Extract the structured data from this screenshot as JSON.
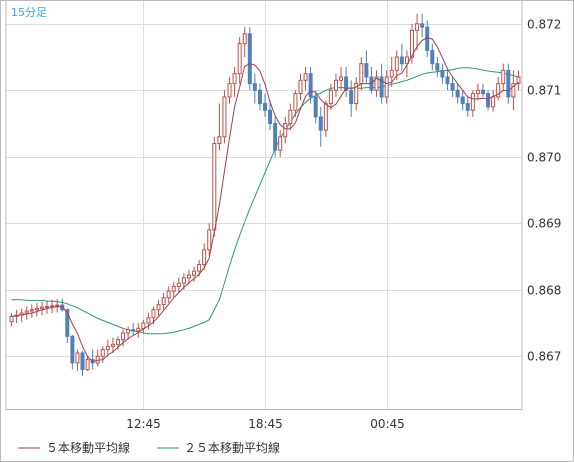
{
  "chart_data": {
    "type": "candlestick",
    "interval_label": "15分足",
    "x_tick_labels": [
      "12:45",
      "18:45",
      "00:45"
    ],
    "y_ticks": [
      0.867,
      0.868,
      0.869,
      0.87,
      0.871,
      0.872
    ],
    "y_tick_labels": [
      "0.867",
      "0.868",
      "0.869",
      "0.870",
      "0.871",
      "0.872"
    ],
    "ylim": [
      0.8662,
      0.87235
    ],
    "grid": true,
    "legend_position": "bottom",
    "colors": {
      "up": "#c0504d",
      "down": "#4f81bd",
      "ma5": "#a04050",
      "ma25": "#2e9a6a",
      "grid": "#dddddd",
      "frame": "#bbbbbb"
    },
    "series": [
      {
        "name": "５本移動平均線",
        "key": "ma5"
      },
      {
        "name": "２５本移動平均線",
        "key": "ma25"
      }
    ],
    "candles": [
      [
        0.86752,
        0.86765,
        0.86745,
        0.8676
      ],
      [
        0.8676,
        0.8677,
        0.8675,
        0.86762
      ],
      [
        0.86762,
        0.86772,
        0.86752,
        0.86765
      ],
      [
        0.86765,
        0.86775,
        0.86755,
        0.86768
      ],
      [
        0.86768,
        0.86778,
        0.86758,
        0.8677
      ],
      [
        0.8677,
        0.8678,
        0.8676,
        0.86772
      ],
      [
        0.86772,
        0.86782,
        0.86762,
        0.86774
      ],
      [
        0.86774,
        0.86784,
        0.86764,
        0.86775
      ],
      [
        0.86775,
        0.86785,
        0.86765,
        0.86776
      ],
      [
        0.86776,
        0.86786,
        0.86766,
        0.86777
      ],
      [
        0.86777,
        0.86787,
        0.86767,
        0.8677
      ],
      [
        0.8677,
        0.86772,
        0.8672,
        0.8673
      ],
      [
        0.8673,
        0.86732,
        0.8668,
        0.8669
      ],
      [
        0.8669,
        0.8671,
        0.86678,
        0.86705
      ],
      [
        0.86705,
        0.86708,
        0.8667,
        0.8668
      ],
      [
        0.8668,
        0.867,
        0.86678,
        0.86695
      ],
      [
        0.86695,
        0.8671,
        0.8668,
        0.8669
      ],
      [
        0.8669,
        0.8671,
        0.86685,
        0.867
      ],
      [
        0.867,
        0.86715,
        0.8669,
        0.8671
      ],
      [
        0.8671,
        0.86725,
        0.867,
        0.86715
      ],
      [
        0.86715,
        0.86728,
        0.86705,
        0.86718
      ],
      [
        0.86718,
        0.8673,
        0.8671,
        0.86725
      ],
      [
        0.86725,
        0.8674,
        0.86715,
        0.86735
      ],
      [
        0.86735,
        0.86745,
        0.86725,
        0.8674
      ],
      [
        0.8674,
        0.8675,
        0.8673,
        0.86738
      ],
      [
        0.86738,
        0.8675,
        0.86728,
        0.86742
      ],
      [
        0.86742,
        0.86755,
        0.86735,
        0.8675
      ],
      [
        0.8675,
        0.86765,
        0.8674,
        0.86758
      ],
      [
        0.86758,
        0.86775,
        0.86748,
        0.8677
      ],
      [
        0.8677,
        0.86785,
        0.8676,
        0.86778
      ],
      [
        0.86778,
        0.86795,
        0.8677,
        0.86788
      ],
      [
        0.86788,
        0.86805,
        0.8678,
        0.86798
      ],
      [
        0.86798,
        0.86812,
        0.86788,
        0.86805
      ],
      [
        0.86805,
        0.86818,
        0.86795,
        0.8681
      ],
      [
        0.8681,
        0.86825,
        0.868,
        0.86818
      ],
      [
        0.86818,
        0.8683,
        0.86808,
        0.86822
      ],
      [
        0.86822,
        0.86835,
        0.86812,
        0.86828
      ],
      [
        0.86828,
        0.86845,
        0.8682,
        0.86838
      ],
      [
        0.86838,
        0.8687,
        0.8683,
        0.8686
      ],
      [
        0.8686,
        0.869,
        0.8685,
        0.8689
      ],
      [
        0.8689,
        0.8703,
        0.8688,
        0.8702
      ],
      [
        0.8702,
        0.8708,
        0.8701,
        0.8703
      ],
      [
        0.8703,
        0.871,
        0.8702,
        0.8709
      ],
      [
        0.8709,
        0.8712,
        0.8708,
        0.8711
      ],
      [
        0.8711,
        0.87135,
        0.8709,
        0.87125
      ],
      [
        0.87125,
        0.8718,
        0.8711,
        0.8717
      ],
      [
        0.8717,
        0.87195,
        0.8715,
        0.87185
      ],
      [
        0.87185,
        0.87195,
        0.871,
        0.8711
      ],
      [
        0.8711,
        0.87125,
        0.8708,
        0.871
      ],
      [
        0.871,
        0.8711,
        0.8707,
        0.8708
      ],
      [
        0.8708,
        0.87095,
        0.8706,
        0.8707
      ],
      [
        0.8707,
        0.87085,
        0.8704,
        0.8705
      ],
      [
        0.8705,
        0.8706,
        0.87,
        0.8701
      ],
      [
        0.8701,
        0.8704,
        0.87,
        0.8703
      ],
      [
        0.8703,
        0.8706,
        0.8702,
        0.8705
      ],
      [
        0.8705,
        0.8708,
        0.8704,
        0.8707
      ],
      [
        0.8707,
        0.871,
        0.8706,
        0.87095
      ],
      [
        0.87095,
        0.87125,
        0.87085,
        0.87115
      ],
      [
        0.87115,
        0.87135,
        0.871,
        0.87125
      ],
      [
        0.87125,
        0.87135,
        0.8708,
        0.8709
      ],
      [
        0.8709,
        0.871,
        0.8705,
        0.8706
      ],
      [
        0.8706,
        0.87075,
        0.87015,
        0.8704
      ],
      [
        0.8704,
        0.87085,
        0.8703,
        0.8708
      ],
      [
        0.8708,
        0.8711,
        0.8707,
        0.871
      ],
      [
        0.871,
        0.87125,
        0.8709,
        0.87115
      ],
      [
        0.87115,
        0.87135,
        0.871,
        0.8712
      ],
      [
        0.8712,
        0.87135,
        0.8709,
        0.871
      ],
      [
        0.871,
        0.87115,
        0.8706,
        0.8708
      ],
      [
        0.8708,
        0.8712,
        0.8707,
        0.8711
      ],
      [
        0.8711,
        0.8715,
        0.871,
        0.8714
      ],
      [
        0.8714,
        0.8716,
        0.8711,
        0.8712
      ],
      [
        0.8712,
        0.87135,
        0.87095,
        0.871
      ],
      [
        0.871,
        0.8713,
        0.8709,
        0.8712
      ],
      [
        0.8712,
        0.8714,
        0.8708,
        0.8709
      ],
      [
        0.8709,
        0.8713,
        0.8708,
        0.8712
      ],
      [
        0.8712,
        0.8715,
        0.87105,
        0.8713
      ],
      [
        0.8713,
        0.8716,
        0.87115,
        0.8715
      ],
      [
        0.8715,
        0.8717,
        0.8713,
        0.8714
      ],
      [
        0.8714,
        0.8716,
        0.8712,
        0.8715
      ],
      [
        0.8715,
        0.872,
        0.8714,
        0.8719
      ],
      [
        0.8719,
        0.87215,
        0.8716,
        0.872
      ],
      [
        0.872,
        0.87215,
        0.8718,
        0.87195
      ],
      [
        0.87195,
        0.87205,
        0.8715,
        0.8716
      ],
      [
        0.8716,
        0.8717,
        0.8713,
        0.8714
      ],
      [
        0.8714,
        0.8715,
        0.8712,
        0.8713
      ],
      [
        0.8713,
        0.8714,
        0.8711,
        0.8712
      ],
      [
        0.8712,
        0.8713,
        0.871,
        0.8711
      ],
      [
        0.8711,
        0.8712,
        0.8709,
        0.871
      ],
      [
        0.871,
        0.8711,
        0.8708,
        0.8709
      ],
      [
        0.8709,
        0.871,
        0.8707,
        0.8708
      ],
      [
        0.8708,
        0.8709,
        0.8706,
        0.8707
      ],
      [
        0.8707,
        0.871,
        0.8706,
        0.87095
      ],
      [
        0.87095,
        0.8711,
        0.87085,
        0.871
      ],
      [
        0.871,
        0.8711,
        0.8709,
        0.87095
      ],
      [
        0.87095,
        0.871,
        0.8707,
        0.87075
      ],
      [
        0.87075,
        0.871,
        0.87068,
        0.8709
      ],
      [
        0.8709,
        0.8712,
        0.87085,
        0.8711
      ],
      [
        0.8711,
        0.8714,
        0.871,
        0.8713
      ],
      [
        0.8713,
        0.8714,
        0.8708,
        0.8709
      ],
      [
        0.8709,
        0.8713,
        0.8707,
        0.8711
      ],
      [
        0.8711,
        0.8713,
        0.871,
        0.8712
      ]
    ],
    "ma25": [
      0.86785,
      0.86785,
      0.86785,
      0.86784,
      0.86784,
      0.86784,
      0.86784,
      0.86783,
      0.86783,
      0.86782,
      0.86781,
      0.86779,
      0.86776,
      0.86773,
      0.86769,
      0.86765,
      0.86761,
      0.86757,
      0.86754,
      0.86751,
      0.86748,
      0.86745,
      0.86742,
      0.8674,
      0.86738,
      0.86737,
      0.86735,
      0.86734,
      0.86734,
      0.86734,
      0.86734,
      0.86735,
      0.86736,
      0.86738,
      0.8674,
      0.86742,
      0.86745,
      0.86748,
      0.86751,
      0.86755,
      0.8677,
      0.86785,
      0.8681,
      0.86836,
      0.8686,
      0.86882,
      0.86902,
      0.86922,
      0.8694,
      0.86958,
      0.86976,
      0.86994,
      0.87012,
      0.87028,
      0.8704,
      0.87052,
      0.87064,
      0.87074,
      0.87082,
      0.87088,
      0.87092,
      0.87096,
      0.871,
      0.87103,
      0.87104,
      0.87104,
      0.87104,
      0.87103,
      0.87103,
      0.87103,
      0.87104,
      0.87104,
      0.87104,
      0.87105,
      0.87107,
      0.87109,
      0.87111,
      0.87113,
      0.87115,
      0.87118,
      0.87121,
      0.87124,
      0.87126,
      0.87127,
      0.87128,
      0.87129,
      0.8713,
      0.87131,
      0.87133,
      0.87134,
      0.87134,
      0.87133,
      0.87132,
      0.8713,
      0.87129,
      0.87128,
      0.87127,
      0.87126,
      0.87124,
      0.87122,
      0.8712
    ]
  },
  "legend": {
    "ma5_label": "５本移動平均線",
    "ma25_label": "２５本移動平均線"
  }
}
